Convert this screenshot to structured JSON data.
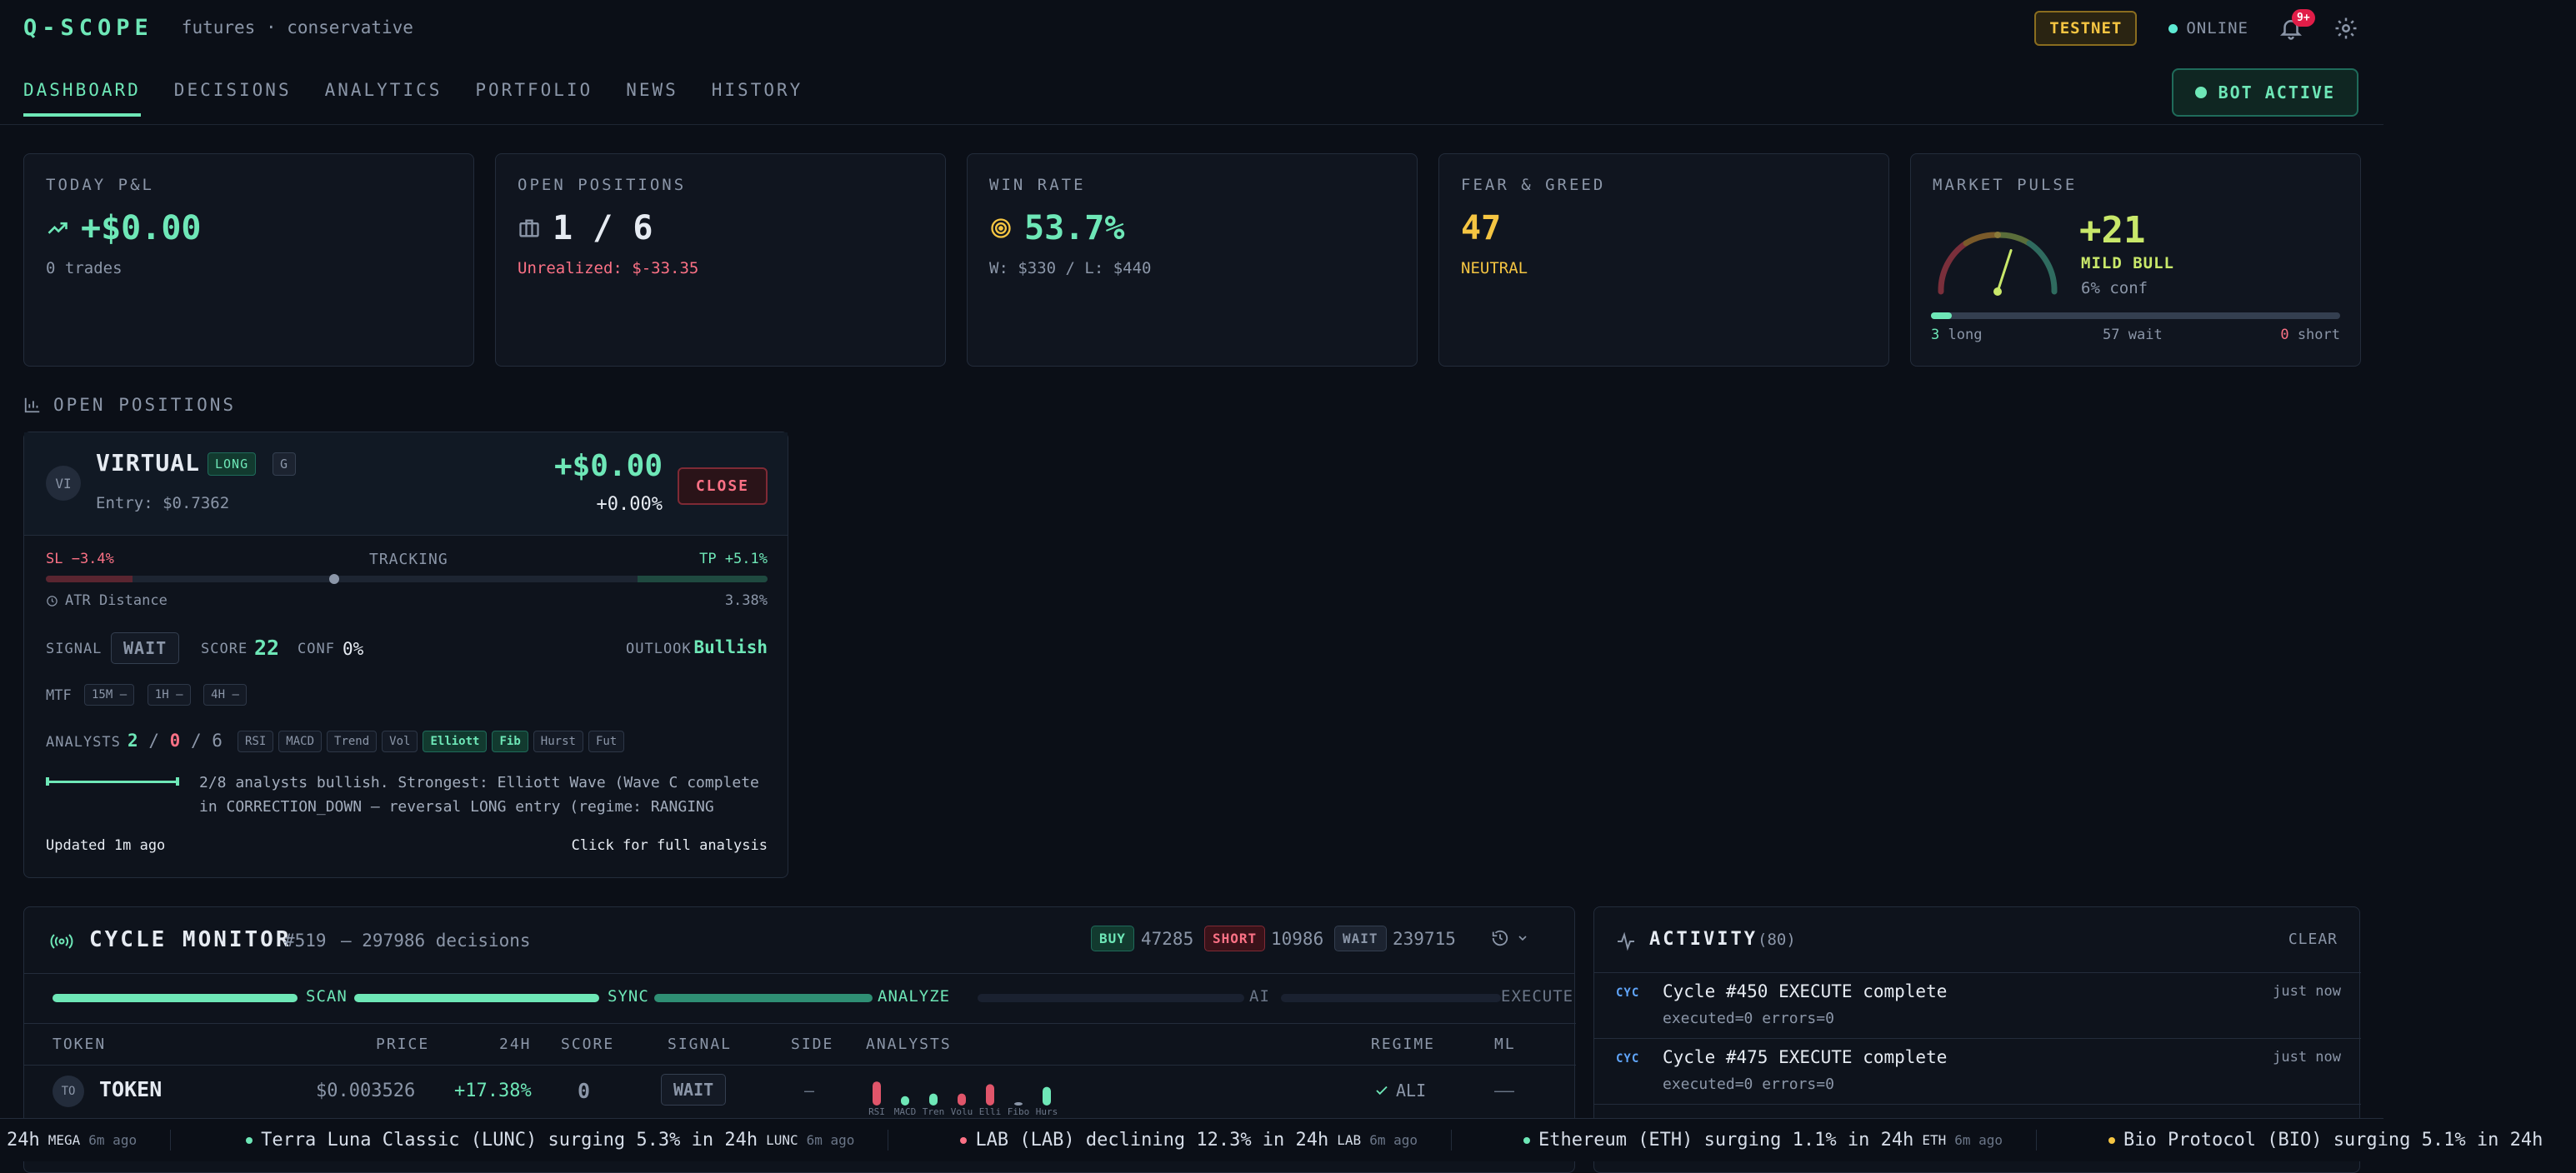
{
  "header": {
    "logo": "Q-SCOPE",
    "subtitle": "futures · conservative",
    "network_badge": "TESTNET",
    "status": "ONLINE",
    "notifications": "9+"
  },
  "nav": {
    "tabs": [
      "DASHBOARD",
      "DECISIONS",
      "ANALYTICS",
      "PORTFOLIO",
      "NEWS",
      "HISTORY"
    ],
    "active_tab": "DASHBOARD",
    "bot_status": "BOT ACTIVE"
  },
  "stats": {
    "pnl": {
      "label": "TODAY P&L",
      "value": "+$0.00",
      "sub": "0 trades"
    },
    "positions": {
      "label": "OPEN POSITIONS",
      "value": "1 / 6",
      "sub": "Unrealized: $-33.35"
    },
    "winrate": {
      "label": "WIN RATE",
      "value": "53.7%",
      "sub": "W: $330 / L: $440"
    },
    "fear": {
      "label": "FEAR & GREED",
      "value": "47",
      "sub": "NEUTRAL"
    },
    "pulse": {
      "label": "MARKET PULSE",
      "value": "+21",
      "mood": "MILD BULL",
      "conf": "6% conf",
      "long_count": "3",
      "long_label": "long",
      "wait_count": "57",
      "wait_label": "wait",
      "short_count": "0",
      "short_label": "short",
      "long_fraction": 0.05,
      "gauge_level": 0.6
    }
  },
  "open_positions": {
    "title": "OPEN POSITIONS",
    "position": {
      "avatar": "VI",
      "symbol": "VIRTUAL",
      "side": "LONG",
      "grade": "G",
      "entry": "Entry: $0.7362",
      "pnl": "+$0.00",
      "pnl_pct": "+0.00%",
      "close_label": "CLOSE",
      "sl": "SL −3.4%",
      "tracking": "TRACKING",
      "tp": "TP +5.1%",
      "price_position": 0.4,
      "atr_label": "ATR Distance",
      "atr_value": "3.38%",
      "signal_label": "SIGNAL",
      "signal": "WAIT",
      "score_label": "SCORE",
      "score": "22",
      "conf_label": "CONF",
      "conf": "0%",
      "outlook_label": "OUTLOOK",
      "outlook": "Bullish",
      "mtf_label": "MTF",
      "mtf": [
        "15M —",
        "1H —",
        "4H —"
      ],
      "analysts_label": "ANALYSTS",
      "analysts_bull": "2",
      "analysts_sep1": "/",
      "analysts_bear": "0",
      "analysts_sep2": "/",
      "analysts_total": "6",
      "analyst_chips": [
        {
          "name": "RSI",
          "hl": false
        },
        {
          "name": "MACD",
          "hl": false
        },
        {
          "name": "Trend",
          "hl": false
        },
        {
          "name": "Vol",
          "hl": false
        },
        {
          "name": "Elliott",
          "hl": true
        },
        {
          "name": "Fib",
          "hl": true
        },
        {
          "name": "Hurst",
          "hl": false
        },
        {
          "name": "Fut",
          "hl": false
        }
      ],
      "summary_line1": "2/8 analysts bullish. Strongest: Elliott Wave (Wave C complete",
      "summary_line2": "in CORRECTION_DOWN — reversal LONG entry (regime: RANGING",
      "updated": "Updated 1m ago",
      "details_link": "Click for full analysis"
    }
  },
  "cycle_monitor": {
    "title": "CYCLE MONITOR",
    "cycle_no": "#519",
    "decisions": "— 297986 decisions",
    "buy_label": "BUY",
    "buy_count": "47285",
    "short_label": "SHORT",
    "short_count": "10986",
    "wait_label": "WAIT",
    "wait_count": "239715",
    "stages": [
      "SCAN",
      "SYNC",
      "ANALYZE",
      "AI",
      "EXECUTE"
    ],
    "columns": [
      "TOKEN",
      "PRICE",
      "24H",
      "SCORE",
      "SIGNAL",
      "SIDE",
      "ANALYSTS",
      "REGIME",
      "ML"
    ],
    "row": {
      "avatar": "TO",
      "token": "TOKEN",
      "price": "$0.003526",
      "change": "+17.38%",
      "score": "0",
      "signal": "WAIT",
      "side": "—",
      "regime": "ALI",
      "ml": "——",
      "analyst_bars": [
        {
          "name": "RSI",
          "level": 0.9,
          "color": "#e0556a"
        },
        {
          "name": "MACD",
          "level": 0.35,
          "color": "#6ee7b7"
        },
        {
          "name": "Tren",
          "level": 0.45,
          "color": "#6ee7b7"
        },
        {
          "name": "Volu",
          "level": 0.45,
          "color": "#e0556a"
        },
        {
          "name": "Elli",
          "level": 0.8,
          "color": "#e0556a"
        },
        {
          "name": "Fibo",
          "level": 0.12,
          "color": "#8b96a8"
        },
        {
          "name": "Hurs",
          "level": 0.7,
          "color": "#6ee7b7"
        }
      ]
    }
  },
  "activity": {
    "title": "ACTIVITY",
    "count": "(80)",
    "clear": "CLEAR",
    "items": [
      {
        "tag": "CYC",
        "title": "Cycle #450 EXECUTE complete",
        "detail": "executed=0 errors=0",
        "time": "just now"
      },
      {
        "tag": "CYC",
        "title": "Cycle #475 EXECUTE complete",
        "detail": "executed=0 errors=0",
        "time": "just now"
      }
    ]
  },
  "ticker": [
    {
      "text": "24h",
      "sym": "MEGA",
      "age": "6m ago",
      "dot": ""
    },
    {
      "text": "Terra Luna Classic (LUNC) surging 5.3% in 24h",
      "sym": "LUNC",
      "age": "6m ago",
      "dot": "#6ee7b7"
    },
    {
      "text": "LAB (LAB) declining 12.3% in 24h",
      "sym": "LAB",
      "age": "6m ago",
      "dot": "#fb7185"
    },
    {
      "text": "Ethereum (ETH) surging 1.1% in 24h",
      "sym": "ETH",
      "age": "6m ago",
      "dot": "#6ee7b7"
    },
    {
      "text": "Bio Protocol (BIO) surging 5.1% in 24h",
      "sym": "",
      "age": "",
      "dot": "#f5c542"
    }
  ]
}
